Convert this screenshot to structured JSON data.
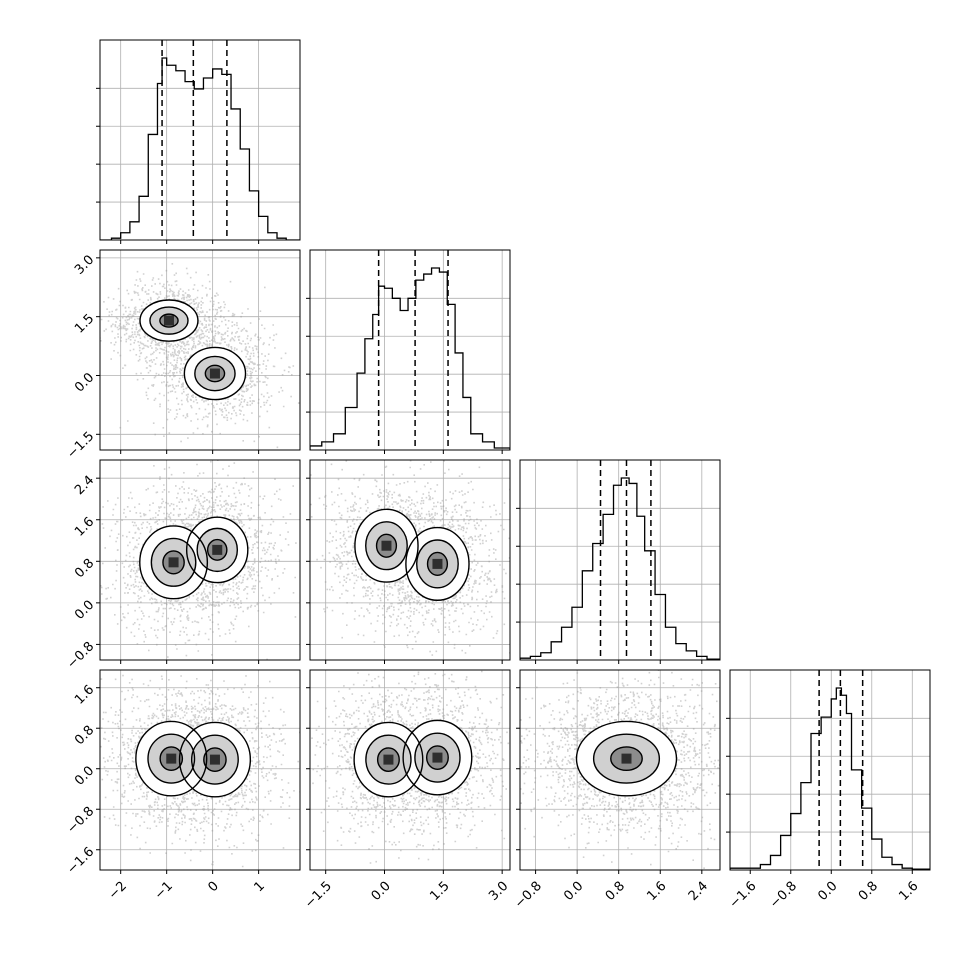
{
  "chart_data": {
    "type": "corner",
    "n_params": 4,
    "grid": true,
    "quantile_lines": "dashed",
    "params": [
      {
        "index": 0,
        "range": [
          -2.45,
          1.9
        ],
        "ticks": [
          -2,
          -1,
          0,
          1
        ],
        "tick_labels": [
          "−2",
          "−1",
          "0",
          "1"
        ],
        "quantiles": [
          -1.1,
          -0.42,
          0.31
        ],
        "hist": {
          "edges": [
            -2.45,
            -2.2,
            -2.0,
            -1.8,
            -1.6,
            -1.4,
            -1.2,
            -1.1,
            -1.0,
            -0.8,
            -0.6,
            -0.4,
            -0.2,
            0.0,
            0.2,
            0.4,
            0.6,
            0.8,
            1.0,
            1.2,
            1.4,
            1.6,
            1.9
          ],
          "counts": [
            0.0,
            0.01,
            0.04,
            0.1,
            0.24,
            0.58,
            0.86,
            1.0,
            0.96,
            0.93,
            0.87,
            0.83,
            0.89,
            0.94,
            0.91,
            0.72,
            0.5,
            0.27,
            0.13,
            0.04,
            0.01,
            0.0
          ]
        }
      },
      {
        "index": 1,
        "range": [
          -1.9,
          3.2
        ],
        "ticks": [
          -1.5,
          0.0,
          1.5,
          3.0
        ],
        "tick_labels": [
          "−1.5",
          "0.0",
          "1.5",
          "3.0"
        ],
        "quantiles": [
          -0.15,
          0.78,
          1.62
        ],
        "hist": {
          "edges": [
            -1.9,
            -1.6,
            -1.3,
            -1.0,
            -0.7,
            -0.5,
            -0.3,
            -0.15,
            0.0,
            0.2,
            0.4,
            0.6,
            0.8,
            1.0,
            1.2,
            1.4,
            1.6,
            1.8,
            2.0,
            2.2,
            2.5,
            2.8,
            3.2
          ],
          "counts": [
            0.02,
            0.04,
            0.08,
            0.21,
            0.38,
            0.55,
            0.67,
            0.81,
            0.8,
            0.75,
            0.69,
            0.75,
            0.84,
            0.87,
            0.9,
            0.88,
            0.72,
            0.48,
            0.26,
            0.08,
            0.04,
            0.01
          ]
        }
      },
      {
        "index": 2,
        "range": [
          -1.1,
          2.75
        ],
        "ticks": [
          -0.8,
          0.0,
          0.8,
          1.6,
          2.4
        ],
        "tick_labels": [
          "−0.8",
          "0.0",
          "0.8",
          "1.6",
          "2.4"
        ],
        "quantiles": [
          0.45,
          0.95,
          1.42
        ],
        "hist": {
          "edges": [
            -1.1,
            -0.9,
            -0.7,
            -0.5,
            -0.3,
            -0.1,
            0.1,
            0.3,
            0.5,
            0.7,
            0.85,
            1.0,
            1.15,
            1.3,
            1.5,
            1.7,
            1.9,
            2.1,
            2.3,
            2.5,
            2.75
          ],
          "counts": [
            0.01,
            0.02,
            0.04,
            0.1,
            0.18,
            0.29,
            0.49,
            0.64,
            0.8,
            0.96,
            1.0,
            0.97,
            0.79,
            0.6,
            0.36,
            0.18,
            0.09,
            0.05,
            0.02,
            0.005
          ]
        }
      },
      {
        "index": 3,
        "range": [
          -2.0,
          1.95
        ],
        "ticks": [
          -1.6,
          -0.8,
          0.0,
          0.8,
          1.6
        ],
        "tick_labels": [
          "−1.6",
          "−0.8",
          "0.0",
          "0.8",
          "1.6"
        ],
        "quantiles": [
          -0.24,
          0.18,
          0.62
        ],
        "hist": {
          "edges": [
            -2.0,
            -1.4,
            -1.2,
            -1.0,
            -0.8,
            -0.6,
            -0.4,
            -0.2,
            0.0,
            0.1,
            0.2,
            0.3,
            0.4,
            0.6,
            0.8,
            1.0,
            1.2,
            1.4,
            1.6,
            1.95
          ],
          "counts": [
            0.01,
            0.03,
            0.08,
            0.19,
            0.31,
            0.48,
            0.75,
            0.84,
            0.94,
            1.0,
            0.96,
            0.86,
            0.55,
            0.34,
            0.17,
            0.07,
            0.03,
            0.01,
            0.005
          ]
        }
      }
    ],
    "pairs": [
      {
        "x": 0,
        "y": 1,
        "modes": [
          {
            "center": [
              -0.95,
              1.4
            ],
            "sd": [
              0.36,
              0.3
            ],
            "levels": [
              0.7,
              0.45,
              0.2
            ]
          },
          {
            "center": [
              0.05,
              0.05
            ],
            "sd": [
              0.38,
              0.38
            ],
            "levels": [
              0.72,
              0.45,
              0.2
            ]
          }
        ]
      },
      {
        "x": 0,
        "y": 2,
        "modes": [
          {
            "center": [
              -0.85,
              0.78
            ],
            "sd": [
              0.42,
              0.4
            ],
            "levels": [
              0.7,
              0.45,
              0.18
            ]
          },
          {
            "center": [
              0.1,
              1.02
            ],
            "sd": [
              0.38,
              0.36
            ],
            "levels": [
              0.7,
              0.45,
              0.18
            ]
          }
        ]
      },
      {
        "x": 1,
        "y": 2,
        "modes": [
          {
            "center": [
              0.05,
              1.1
            ],
            "sd": [
              0.46,
              0.4
            ],
            "levels": [
              0.72,
              0.45,
              0.18
            ]
          },
          {
            "center": [
              1.35,
              0.75
            ],
            "sd": [
              0.46,
              0.4
            ],
            "levels": [
              0.72,
              0.45,
              0.18
            ]
          }
        ]
      },
      {
        "x": 0,
        "y": 3,
        "modes": [
          {
            "center": [
              -0.9,
              0.2
            ],
            "sd": [
              0.44,
              0.42
            ],
            "levels": [
              0.7,
              0.45,
              0.16
            ]
          },
          {
            "center": [
              0.05,
              0.18
            ],
            "sd": [
              0.44,
              0.42
            ],
            "levels": [
              0.7,
              0.45,
              0.16
            ]
          }
        ]
      },
      {
        "x": 1,
        "y": 3,
        "modes": [
          {
            "center": [
              0.1,
              0.18
            ],
            "sd": [
              0.5,
              0.42
            ],
            "levels": [
              0.7,
              0.45,
              0.16
            ]
          },
          {
            "center": [
              1.35,
              0.22
            ],
            "sd": [
              0.5,
              0.42
            ],
            "levels": [
              0.7,
              0.45,
              0.16
            ]
          }
        ]
      },
      {
        "x": 2,
        "y": 3,
        "modes": [
          {
            "center": [
              0.95,
              0.2
            ],
            "sd": [
              0.55,
              0.42
            ],
            "levels": [
              0.8,
              0.45,
              0.14
            ]
          }
        ]
      }
    ]
  }
}
